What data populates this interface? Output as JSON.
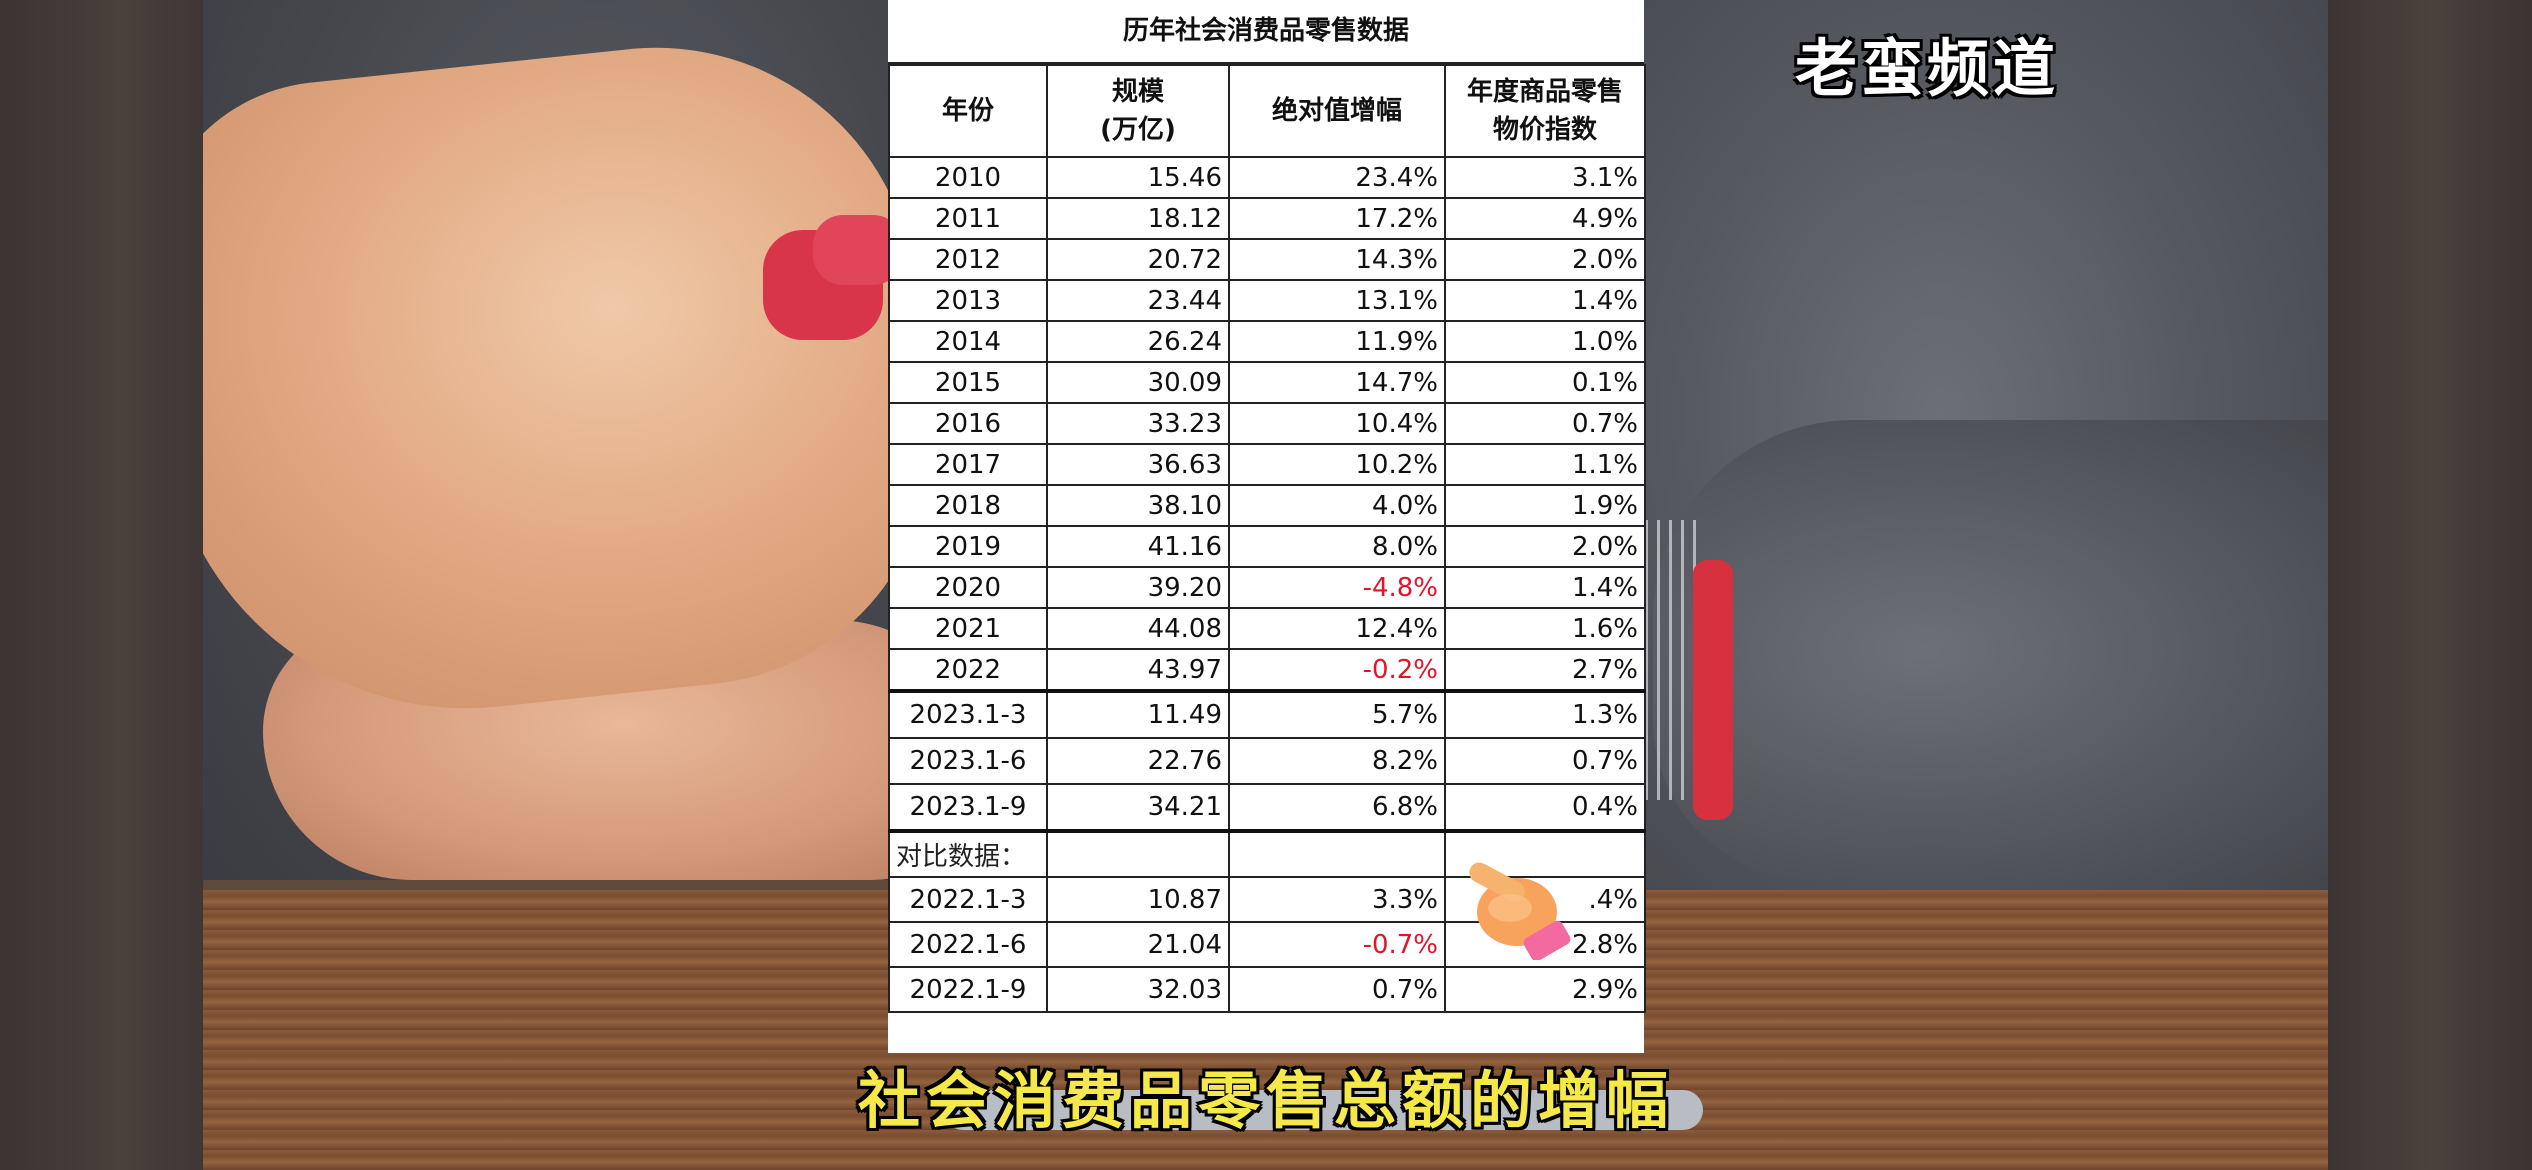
{
  "watermark": "老蛮频道",
  "subtitle": "社会消费品零售总额的增幅",
  "table": {
    "title": "历年社会消费品零售数据",
    "headers": {
      "year": "年份",
      "scale_line1": "规模",
      "scale_line2": "(万亿)",
      "growth": "绝对值增幅",
      "cpi_line1": "年度商品零售",
      "cpi_line2": "物价指数"
    },
    "annual_rows": [
      {
        "year": "2010",
        "scale": "15.46",
        "growth": "23.4%",
        "cpi": "3.1%"
      },
      {
        "year": "2011",
        "scale": "18.12",
        "growth": "17.2%",
        "cpi": "4.9%"
      },
      {
        "year": "2012",
        "scale": "20.72",
        "growth": "14.3%",
        "cpi": "2.0%"
      },
      {
        "year": "2013",
        "scale": "23.44",
        "growth": "13.1%",
        "cpi": "1.4%"
      },
      {
        "year": "2014",
        "scale": "26.24",
        "growth": "11.9%",
        "cpi": "1.0%"
      },
      {
        "year": "2015",
        "scale": "30.09",
        "growth": "14.7%",
        "cpi": "0.1%"
      },
      {
        "year": "2016",
        "scale": "33.23",
        "growth": "10.4%",
        "cpi": "0.7%"
      },
      {
        "year": "2017",
        "scale": "36.63",
        "growth": "10.2%",
        "cpi": "1.1%"
      },
      {
        "year": "2018",
        "scale": "38.10",
        "growth": "4.0%",
        "cpi": "1.9%"
      },
      {
        "year": "2019",
        "scale": "41.16",
        "growth": "8.0%",
        "cpi": "2.0%"
      },
      {
        "year": "2020",
        "scale": "39.20",
        "growth": "-4.8%",
        "cpi": "1.4%"
      },
      {
        "year": "2021",
        "scale": "44.08",
        "growth": "12.4%",
        "cpi": "1.6%"
      },
      {
        "year": "2022",
        "scale": "43.97",
        "growth": "-0.2%",
        "cpi": "2.7%"
      }
    ],
    "rows_2023": [
      {
        "year": "2023.1-3",
        "scale": "11.49",
        "growth": "5.7%",
        "cpi": "1.3%"
      },
      {
        "year": "2023.1-6",
        "scale": "22.76",
        "growth": "8.2%",
        "cpi": "0.7%"
      },
      {
        "year": "2023.1-9",
        "scale": "34.21",
        "growth": "6.8%",
        "cpi": "0.4%"
      }
    ],
    "compare_label": "对比数据：",
    "compare_rows": [
      {
        "year": "2022.1-3",
        "scale": "10.87",
        "growth": "3.3%",
        "cpi": ".4%"
      },
      {
        "year": "2022.1-6",
        "scale": "21.04",
        "growth": "-0.7%",
        "cpi": "2.8%"
      },
      {
        "year": "2022.1-9",
        "scale": "32.03",
        "growth": "0.7%",
        "cpi": "2.9%"
      }
    ]
  },
  "colors": {
    "negative": "#e0142a",
    "subtitle": "#f5e94a"
  }
}
